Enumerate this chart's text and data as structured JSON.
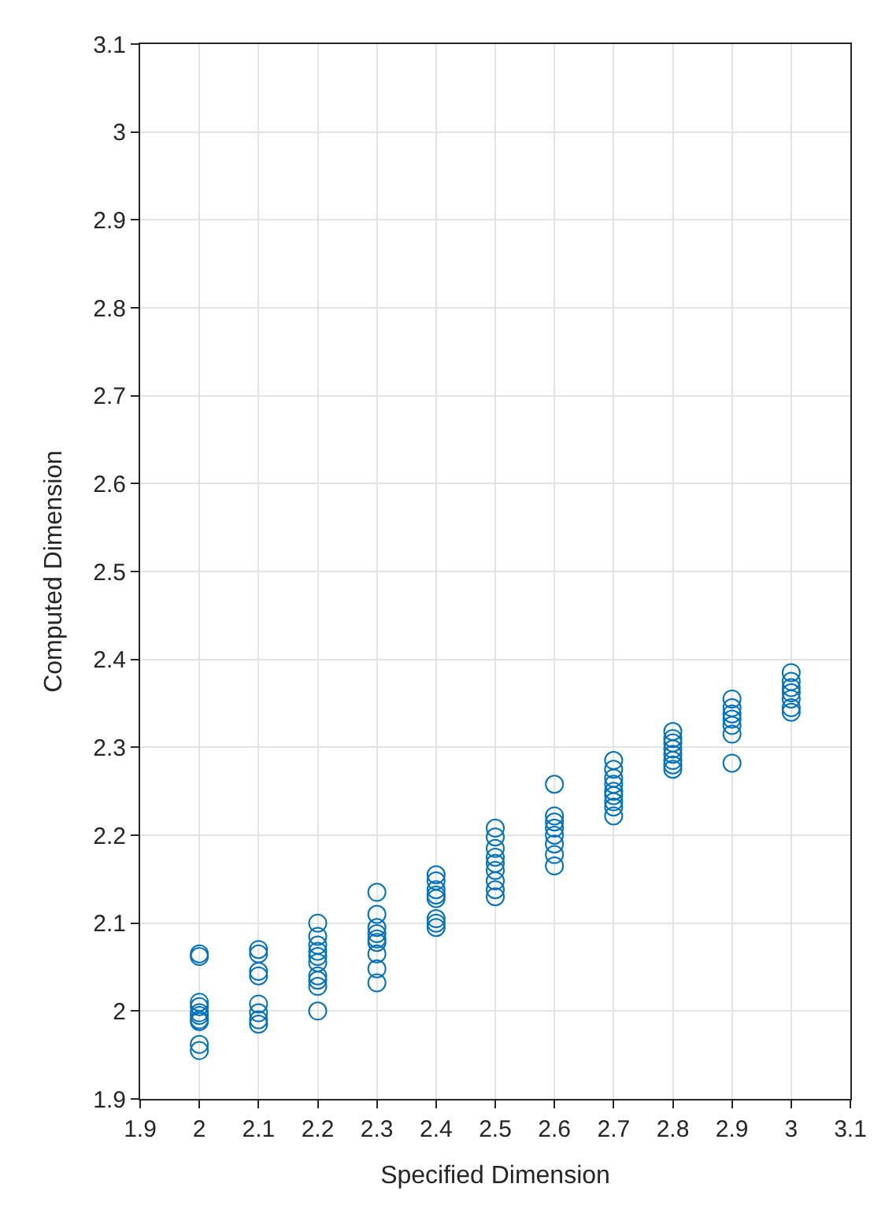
{
  "chart_data": {
    "type": "scatter",
    "xlabel": "Specified Dimension",
    "ylabel": "Computed Dimension",
    "xlim": [
      1.9,
      3.1
    ],
    "xticks": [
      1.9,
      2,
      2.1,
      2.2,
      2.3,
      2.4,
      2.5,
      2.6,
      2.7,
      2.8,
      2.9,
      3,
      3.1
    ],
    "ylim": [
      1.9,
      3.1
    ],
    "yticks": [
      1.9,
      2,
      2.1,
      2.2,
      2.3,
      2.4,
      2.5,
      2.6,
      2.7,
      2.8,
      2.9,
      3,
      3.1
    ],
    "grid": true,
    "marker": "circle",
    "series": [
      {
        "color": "#0072bd",
        "x": [
          2,
          2,
          2,
          2,
          2,
          2,
          2,
          2,
          2,
          2,
          2.1,
          2.1,
          2.1,
          2.1,
          2.1,
          2.1,
          2.1,
          2.1,
          2.2,
          2.2,
          2.2,
          2.2,
          2.2,
          2.2,
          2.2,
          2.2,
          2.2,
          2.2,
          2.3,
          2.3,
          2.3,
          2.3,
          2.3,
          2.3,
          2.3,
          2.3,
          2.3,
          2.4,
          2.4,
          2.4,
          2.4,
          2.4,
          2.4,
          2.4,
          2.4,
          2.5,
          2.5,
          2.5,
          2.5,
          2.5,
          2.5,
          2.5,
          2.5,
          2.5,
          2.6,
          2.6,
          2.6,
          2.6,
          2.6,
          2.6,
          2.6,
          2.6,
          2.7,
          2.7,
          2.7,
          2.7,
          2.7,
          2.7,
          2.7,
          2.7,
          2.7,
          2.8,
          2.8,
          2.8,
          2.8,
          2.8,
          2.8,
          2.8,
          2.8,
          2.9,
          2.9,
          2.9,
          2.9,
          2.9,
          2.9,
          2.9,
          3,
          3,
          3,
          3,
          3,
          3,
          3
        ],
        "values": [
          2.065,
          2.062,
          2.01,
          2.005,
          1.998,
          1.995,
          1.99,
          1.988,
          1.962,
          1.955,
          2.07,
          2.065,
          2.045,
          2.04,
          2.008,
          1.998,
          1.99,
          1.985,
          2.1,
          2.085,
          2.075,
          2.068,
          2.062,
          2.055,
          2.04,
          2.035,
          2.028,
          2.0,
          2.135,
          2.11,
          2.095,
          2.088,
          2.082,
          2.078,
          2.065,
          2.048,
          2.032,
          2.155,
          2.148,
          2.138,
          2.132,
          2.128,
          2.105,
          2.1,
          2.095,
          2.208,
          2.198,
          2.185,
          2.175,
          2.168,
          2.16,
          2.148,
          2.138,
          2.13,
          2.258,
          2.222,
          2.215,
          2.208,
          2.2,
          2.19,
          2.178,
          2.165,
          2.285,
          2.275,
          2.265,
          2.258,
          2.25,
          2.245,
          2.238,
          2.232,
          2.222,
          2.318,
          2.31,
          2.305,
          2.298,
          2.292,
          2.285,
          2.28,
          2.275,
          2.355,
          2.345,
          2.338,
          2.332,
          2.325,
          2.315,
          2.282,
          2.385,
          2.375,
          2.368,
          2.362,
          2.355,
          2.345,
          2.34
        ]
      }
    ]
  }
}
